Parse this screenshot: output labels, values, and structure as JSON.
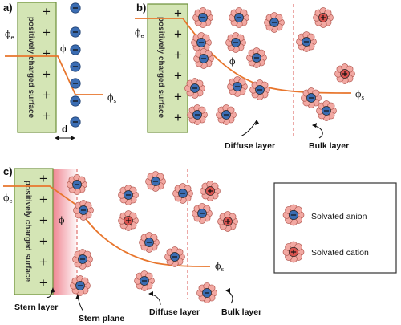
{
  "panels": [
    {
      "id": "a",
      "label": "a)",
      "surface": "positively charged surface",
      "phi_e": "ϕ",
      "phi_e_sub": "e",
      "phi": "ϕ",
      "phi_s": "ϕ",
      "phi_s_sub": "s",
      "d": "d"
    },
    {
      "id": "b",
      "label": "b)",
      "surface": "positively charged surface",
      "phi_e": "ϕ",
      "phi_e_sub": "e",
      "phi": "ϕ",
      "phi_s": "ϕ",
      "phi_s_sub": "s",
      "diffuse": "Diffuse layer",
      "bulk": "Bulk layer"
    },
    {
      "id": "c",
      "label": "c)",
      "surface": "positively charged surface",
      "phi_e": "ϕ",
      "phi_e_sub": "e",
      "phi": "ϕ",
      "phi_s": "ϕ",
      "phi_s_sub": "s",
      "stern_layer": "Stern layer",
      "stern_plane": "Stern plane",
      "diffuse": "Diffuse layer",
      "bulk": "Bulk layer"
    }
  ],
  "symbols": {
    "plus": "+",
    "minus": "−"
  },
  "legend": {
    "anion": "Solvated anion",
    "cation": "Solvated cation"
  },
  "colors": {
    "surface_fill": "#d4e5b5",
    "surface_stroke": "#6d8f3a",
    "curve": "#e8762d",
    "dashed": "#d9534f",
    "anion_core": "#3b6db3",
    "cation_core": "#d9534f",
    "solvent": "#f2a8a2",
    "solvent_stroke": "#b35a52",
    "stern_gradient": "#f08a94"
  }
}
